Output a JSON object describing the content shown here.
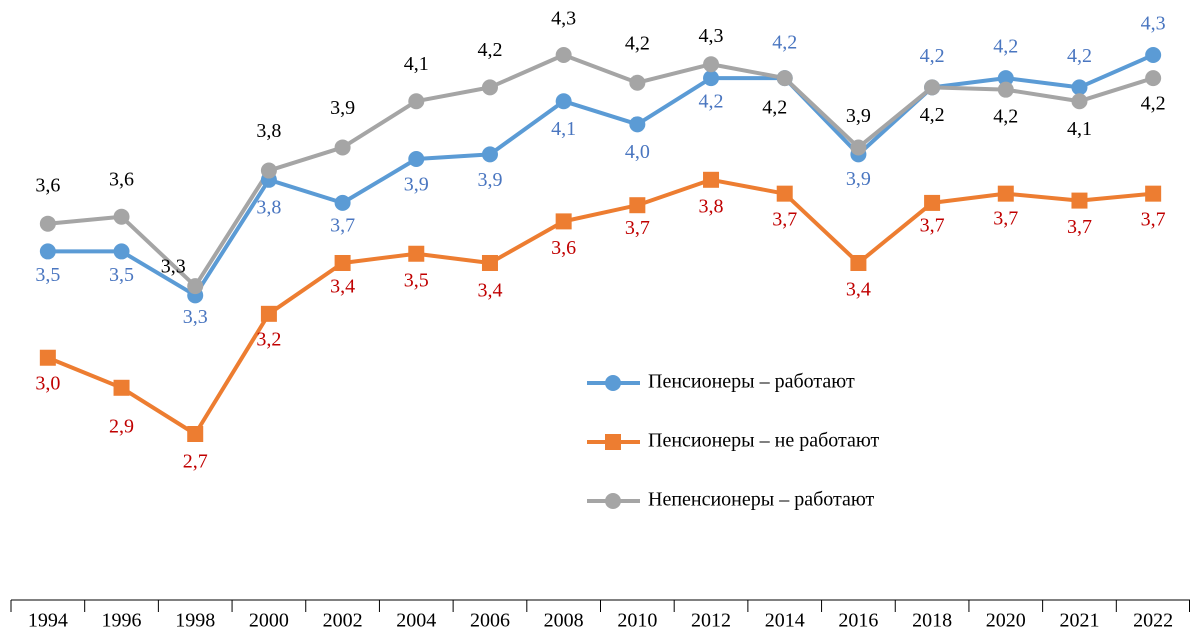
{
  "chart_data": {
    "type": "line",
    "categories": [
      "1994",
      "1996",
      "1998",
      "2000",
      "2002",
      "2004",
      "2006",
      "2008",
      "2010",
      "2012",
      "2014",
      "2016",
      "2018",
      "2020",
      "2021",
      "2022"
    ],
    "series": [
      {
        "name": "Пенсионеры – работают",
        "color": "#5b9bd5",
        "marker": "circle",
        "label_color": "#4a76c0",
        "values": [
          3.49,
          3.49,
          3.3,
          3.8,
          3.7,
          3.89,
          3.91,
          4.14,
          4.04,
          4.24,
          4.24,
          3.91,
          4.2,
          4.24,
          4.2,
          4.34
        ],
        "value_labels": [
          "3,5",
          "3,5",
          "3,3",
          "3,8",
          "3,7",
          "3,9",
          "3,9",
          "4,1",
          "4,0",
          "4,2",
          "4,2",
          "3,9",
          "4,2",
          "4,2",
          "4,2",
          "4,3"
        ]
      },
      {
        "name": "Пенсионеры – не работают",
        "color": "#ed7d31",
        "marker": "square",
        "label_color": "#c00000",
        "values": [
          3.03,
          2.9,
          2.7,
          3.22,
          3.44,
          3.48,
          3.44,
          3.62,
          3.69,
          3.8,
          3.74,
          3.44,
          3.7,
          3.74,
          3.71,
          3.74
        ],
        "value_labels": [
          "3,0",
          "2,9",
          "2,7",
          "3,2",
          "3,4",
          "3,5",
          "3,4",
          "3,6",
          "3,7",
          "3,8",
          "3,7",
          "3,4",
          "3,7",
          "3,7",
          "3,7",
          "3,7"
        ]
      },
      {
        "name": "Непенсионеры – работают",
        "color": "#a5a5a5",
        "marker": "circle",
        "label_color": "#000000",
        "values": [
          3.61,
          3.64,
          3.34,
          3.84,
          3.94,
          4.14,
          4.2,
          4.34,
          4.22,
          4.3,
          4.24,
          3.94,
          4.2,
          4.19,
          4.14,
          4.24
        ],
        "value_labels": [
          "3,6",
          "3,6",
          "3,3",
          "3,8",
          "3,9",
          "4,1",
          "4,2",
          "4,3",
          "4,2",
          "4,3",
          "4,2",
          "3,9",
          "4,2",
          "4,2",
          "4,1",
          "4,2"
        ]
      }
    ],
    "legend": "center-right"
  }
}
